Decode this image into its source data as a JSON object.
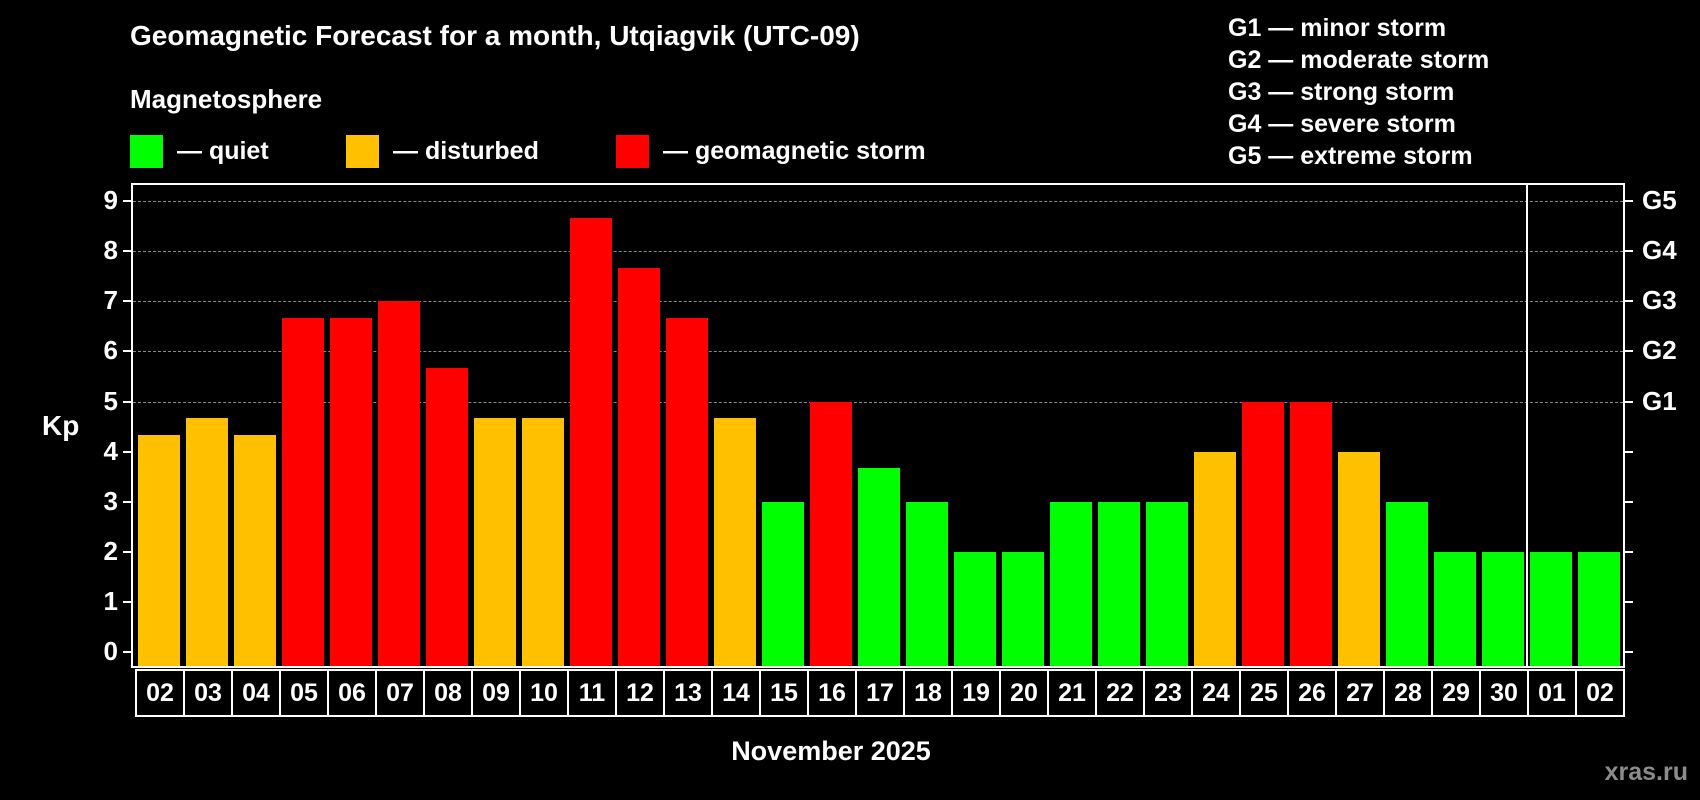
{
  "title": "Geomagnetic Forecast for a month, Utqiagvik (UTC-09)",
  "legend": {
    "heading": "Magnetosphere",
    "items": [
      {
        "label": "— quiet",
        "color": "#00ff00"
      },
      {
        "label": "— disturbed",
        "color": "#ffc000"
      },
      {
        "label": "— geomagnetic storm",
        "color": "#ff0000"
      }
    ]
  },
  "g_scale": [
    "G1 — minor storm",
    "G2 — moderate storm",
    "G3 — strong storm",
    "G4 — severe storm",
    "G5 — extreme storm"
  ],
  "axes": {
    "ylabel": "Kp",
    "yticks": [
      "0",
      "1",
      "2",
      "3",
      "4",
      "5",
      "6",
      "7",
      "8",
      "9"
    ],
    "right_labels": [
      {
        "kp": 5,
        "label": "G1"
      },
      {
        "kp": 6,
        "label": "G2"
      },
      {
        "kp": 7,
        "label": "G3"
      },
      {
        "kp": 8,
        "label": "G4"
      },
      {
        "kp": 9,
        "label": "G5"
      }
    ],
    "xlabel": "November 2025"
  },
  "watermark": "xras.ru",
  "colors": {
    "quiet": "#00ff00",
    "disturbed": "#ffc000",
    "storm": "#ff0000",
    "grid": "#8a8a8a",
    "background": "#000000"
  },
  "chart_data": {
    "type": "bar",
    "title": "Geomagnetic Forecast for a month, Utqiagvik (UTC-09)",
    "xlabel": "November 2025",
    "ylabel": "Kp",
    "ylim": [
      0,
      9
    ],
    "grid": "dashed horizontal at Kp 5-9",
    "categories": [
      "02",
      "03",
      "04",
      "05",
      "06",
      "07",
      "08",
      "09",
      "10",
      "11",
      "12",
      "13",
      "14",
      "15",
      "16",
      "17",
      "18",
      "19",
      "20",
      "21",
      "22",
      "23",
      "24",
      "25",
      "26",
      "27",
      "28",
      "29",
      "30",
      "01",
      "02"
    ],
    "values": [
      4.33,
      4.67,
      4.33,
      6.67,
      6.67,
      7.0,
      5.67,
      4.67,
      4.67,
      8.67,
      7.67,
      6.67,
      4.67,
      3.0,
      5.0,
      3.67,
      3.0,
      2.0,
      2.0,
      3.0,
      3.0,
      3.0,
      4.0,
      5.0,
      5.0,
      4.0,
      3.0,
      2.0,
      2.0,
      2.0,
      2.0
    ],
    "status": [
      "disturbed",
      "disturbed",
      "disturbed",
      "storm",
      "storm",
      "storm",
      "storm",
      "disturbed",
      "disturbed",
      "storm",
      "storm",
      "storm",
      "disturbed",
      "quiet",
      "storm",
      "quiet",
      "quiet",
      "quiet",
      "quiet",
      "quiet",
      "quiet",
      "quiet",
      "disturbed",
      "storm",
      "storm",
      "disturbed",
      "quiet",
      "quiet",
      "quiet",
      "quiet",
      "quiet"
    ],
    "month_separator_after_index": 28,
    "right_axis": {
      "5": "G1",
      "6": "G2",
      "7": "G3",
      "8": "G4",
      "9": "G5"
    }
  }
}
